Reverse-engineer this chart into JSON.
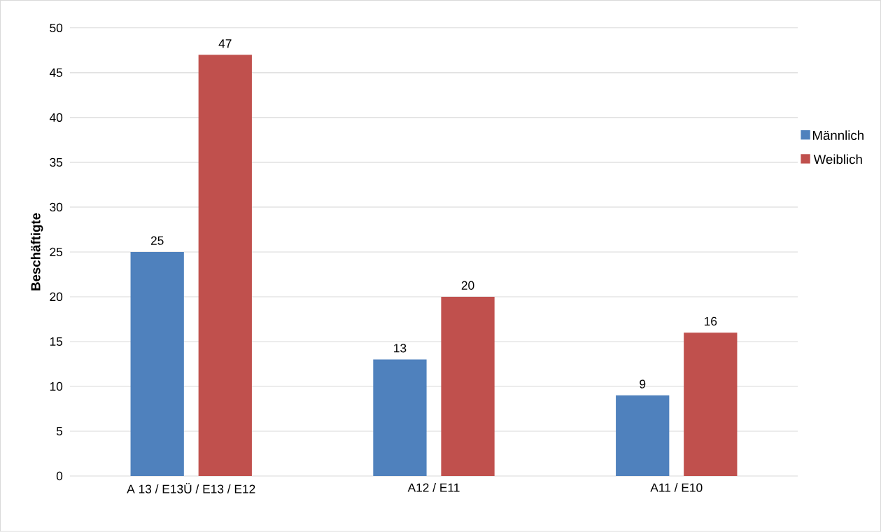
{
  "chart_data": {
    "type": "bar",
    "ylabel": "Beschäftigte",
    "categories": [
      "A 13 / E13Ü / E13 / E12",
      "A12 / E11",
      "A11 / E10"
    ],
    "series": [
      {
        "name": "Männlich",
        "color": "#4f81bd",
        "values": [
          25,
          13,
          9
        ]
      },
      {
        "name": "Weiblich",
        "color": "#c0504d",
        "values": [
          47,
          20,
          16
        ]
      }
    ],
    "ylim": [
      0,
      50
    ],
    "yticks": [
      0,
      5,
      10,
      15,
      20,
      25,
      30,
      35,
      40,
      45,
      50
    ],
    "grid": "y",
    "legend": "right",
    "data_labels": true
  }
}
